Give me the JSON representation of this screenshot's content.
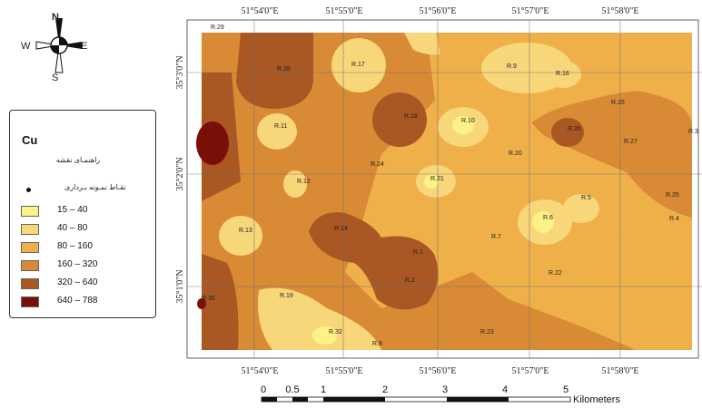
{
  "legend": {
    "title": "Cu",
    "subtitle": "راهنمـای نقشه",
    "sample_label": "نقـاط نمـونه بـرداری",
    "classes": [
      {
        "label": "15 – 40",
        "color": "#fdf285"
      },
      {
        "label": "40 – 80",
        "color": "#f8d67a"
      },
      {
        "label": "80 – 160",
        "color": "#efb04a"
      },
      {
        "label": "160 – 320",
        "color": "#d88a35"
      },
      {
        "label": "320 – 640",
        "color": "#a95824"
      },
      {
        "label": "640 – 788",
        "color": "#7a0f08"
      }
    ]
  },
  "north_arrow": {
    "n": "N",
    "s": "S",
    "e": "E",
    "w": "W"
  },
  "longitudes_top": [
    "51°54'0\"E",
    "51°55'0\"E",
    "51°56'0\"E",
    "51°57'0\"E",
    "51°58'0\"E"
  ],
  "longitudes_bottom": [
    "51°54'0\"E",
    "51°55'0\"E",
    "51°56'0\"E",
    "51°57'0\"E",
    "51°58'0\"E"
  ],
  "latitudes": [
    "35°3'0\"N",
    "35°2'0\"N",
    "35°1'0\"N"
  ],
  "sample_points": [
    "R.29",
    "R.28",
    "R.17",
    "R.9",
    "R.16",
    "R.15",
    "R.3",
    "R.11",
    "R.18",
    "R.10",
    "R.26",
    "R.27",
    "R.24",
    "R.20",
    "R.12",
    "R.21",
    "R.5",
    "R.25",
    "R.13",
    "R.14",
    "R.6",
    "R.4",
    "R.7",
    "R.1",
    "R.22",
    "R.2",
    "R.19",
    "R.30",
    "R.32",
    "R.23",
    "R.8"
  ],
  "scale_bar": {
    "ticks": [
      "0",
      "0.5",
      "1",
      "2",
      "3",
      "4",
      "5"
    ],
    "unit": "Kilometers"
  }
}
